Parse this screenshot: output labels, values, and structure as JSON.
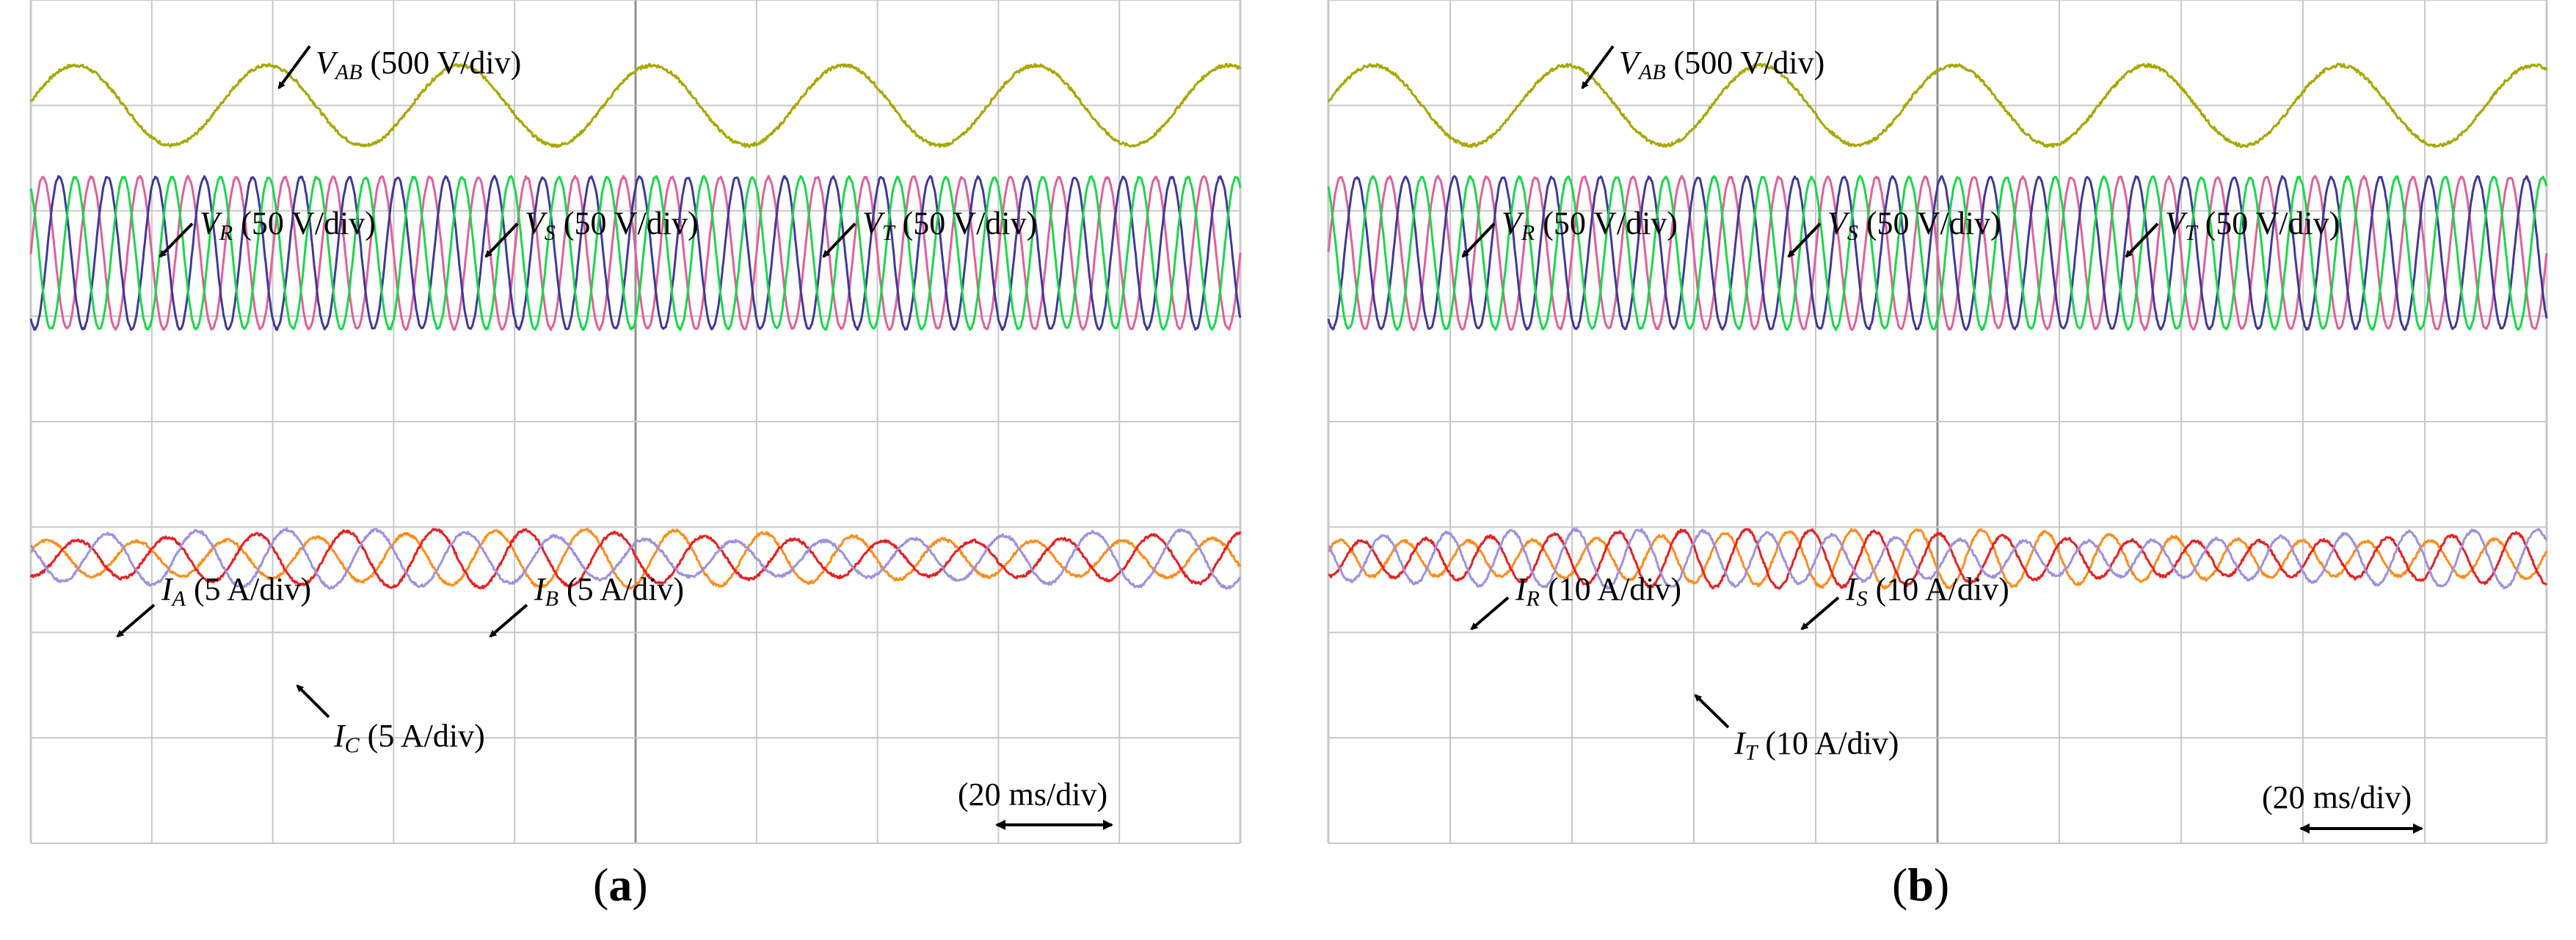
{
  "colors": {
    "v_ab": "#a8a800",
    "phase_r": "#e0609a",
    "phase_s": "#40389a",
    "phase_t": "#18d84a",
    "current_1": "#ff8c1a",
    "current_2": "#e82020",
    "current_3": "#a090e0",
    "grid": "#c8c8c8",
    "frame": "#909090"
  },
  "panels": [
    {
      "label_open": "(",
      "label_letter": "a",
      "label_close": ")",
      "annotations": {
        "vab": {
          "base": "V",
          "sub": "AB",
          "text": " (500 V/div)"
        },
        "vr": {
          "base": "V",
          "sub": "R",
          "text": " (50 V/div)"
        },
        "vs": {
          "base": "V",
          "sub": "S",
          "text": " (50 V/div)"
        },
        "vt": {
          "base": "V",
          "sub": "T",
          "text": " (50 V/div)"
        },
        "i1": {
          "base": "I",
          "sub": "A",
          "text": " (5 A/div)"
        },
        "i2": {
          "base": "I",
          "sub": "B",
          "text": " (5 A/div)"
        },
        "i3": {
          "base": "I",
          "sub": "C",
          "text": " (5 A/div)"
        }
      },
      "time_scale": "(20 ms/div)"
    },
    {
      "label_open": "(",
      "label_letter": "b",
      "label_close": ")",
      "annotations": {
        "vab": {
          "base": "V",
          "sub": "AB",
          "text": " (500 V/div)"
        },
        "vr": {
          "base": "V",
          "sub": "R",
          "text": " (50 V/div)"
        },
        "vs": {
          "base": "V",
          "sub": "S",
          "text": " (50 V/div)"
        },
        "vt": {
          "base": "V",
          "sub": "T",
          "text": " (50 V/div)"
        },
        "i1": {
          "base": "I",
          "sub": "R",
          "text": " (10 A/div)"
        },
        "i2": {
          "base": "I",
          "sub": "S",
          "text": " (10 A/div)"
        },
        "i3": {
          "base": "I",
          "sub": "T",
          "text": " (10 A/div)"
        }
      },
      "time_scale": "(20 ms/div)"
    }
  ],
  "chart_data": [
    {
      "type": "line",
      "grid": true,
      "time_div_ms": 20,
      "divisions_x": 10,
      "divisions_y": 8,
      "series": [
        {
          "name": "V_AB",
          "scale": "500 V/div",
          "cycles": 6.3,
          "amplitude_div": 0.38,
          "center_div": 1.0
        },
        {
          "name": "V_R",
          "scale": "50 V/div",
          "cycles": 25,
          "amplitude_div": 0.72,
          "center_div": 2.4
        },
        {
          "name": "V_S",
          "scale": "50 V/div",
          "cycles": 25,
          "amplitude_div": 0.72,
          "center_div": 2.4
        },
        {
          "name": "V_T",
          "scale": "50 V/div",
          "cycles": 25,
          "amplitude_div": 0.72,
          "center_div": 2.4
        },
        {
          "name": "I_A",
          "scale": "5 A/div",
          "cycles": 13.5,
          "amplitude_div": 0.22,
          "center_div": 5.3
        },
        {
          "name": "I_B",
          "scale": "5 A/div",
          "cycles": 13.5,
          "amplitude_div": 0.22,
          "center_div": 5.3
        },
        {
          "name": "I_C",
          "scale": "5 A/div",
          "cycles": 13.5,
          "amplitude_div": 0.22,
          "center_div": 5.3
        }
      ]
    },
    {
      "type": "line",
      "grid": true,
      "time_div_ms": 20,
      "divisions_x": 10,
      "divisions_y": 8,
      "series": [
        {
          "name": "V_AB",
          "scale": "500 V/div",
          "cycles": 6.3,
          "amplitude_div": 0.38,
          "center_div": 1.0
        },
        {
          "name": "V_R",
          "scale": "50 V/div",
          "cycles": 25,
          "amplitude_div": 0.72,
          "center_div": 2.4
        },
        {
          "name": "V_S",
          "scale": "50 V/div",
          "cycles": 25,
          "amplitude_div": 0.72,
          "center_div": 2.4
        },
        {
          "name": "V_T",
          "scale": "50 V/div",
          "cycles": 25,
          "amplitude_div": 0.72,
          "center_div": 2.4
        },
        {
          "name": "I_R",
          "scale": "10 A/div",
          "cycles": 19,
          "amplitude_div": 0.22,
          "center_div": 5.3
        },
        {
          "name": "I_S",
          "scale": "10 A/div",
          "cycles": 19,
          "amplitude_div": 0.22,
          "center_div": 5.3
        },
        {
          "name": "I_T",
          "scale": "10 A/div",
          "cycles": 19,
          "amplitude_div": 0.22,
          "center_div": 5.3
        }
      ]
    }
  ]
}
